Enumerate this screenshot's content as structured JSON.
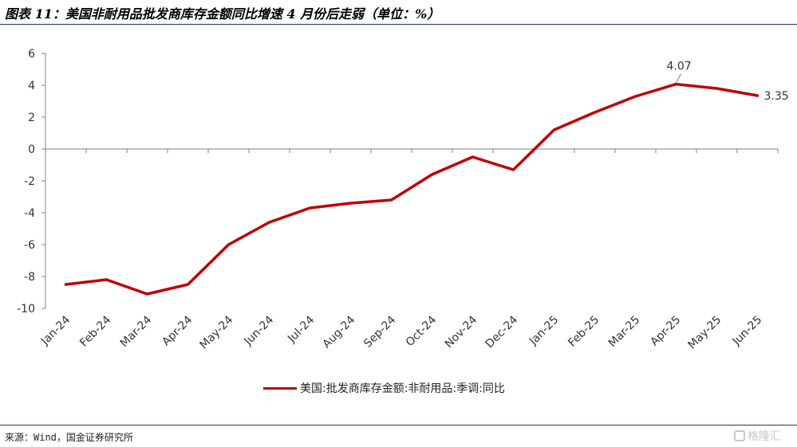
{
  "header": {
    "title": "图表 11：美国非耐用品批发商库存金额同比增速 4 月份后走弱（单位：%）"
  },
  "chart_data": {
    "type": "line",
    "title": "图表 11：美国非耐用品批发商库存金额同比增速 4 月份后走弱（单位：%）",
    "categories": [
      "Jan-24",
      "Feb-24",
      "Mar-24",
      "Apr-24",
      "May-24",
      "Jun-24",
      "Jul-24",
      "Aug-24",
      "Sep-24",
      "Oct-24",
      "Nov-24",
      "Dec-24",
      "Jan-25",
      "Feb-25",
      "Mar-25",
      "Apr-25",
      "May-25",
      "Jun-25"
    ],
    "series": [
      {
        "name": "美国:批发商库存金额:非耐用品:季调:同比",
        "color": "#c00000",
        "values": [
          -8.5,
          -8.2,
          -9.1,
          -8.5,
          -6.0,
          -4.6,
          -3.7,
          -3.4,
          -3.2,
          -1.6,
          -0.5,
          -1.3,
          1.2,
          2.3,
          3.3,
          4.07,
          3.8,
          3.35
        ]
      }
    ],
    "data_labels": [
      {
        "index": 15,
        "text": "4.07"
      },
      {
        "index": 17,
        "text": "3.35"
      }
    ],
    "ylim": [
      -10,
      6
    ],
    "yticks": [
      "6",
      "4",
      "2",
      "0",
      "-2",
      "-4",
      "-6",
      "-8",
      "-10"
    ],
    "grid": false,
    "legend_position": "bottom"
  },
  "footer": {
    "source": "来源：Wind，国金证券研究所",
    "watermark": "格隆汇"
  }
}
